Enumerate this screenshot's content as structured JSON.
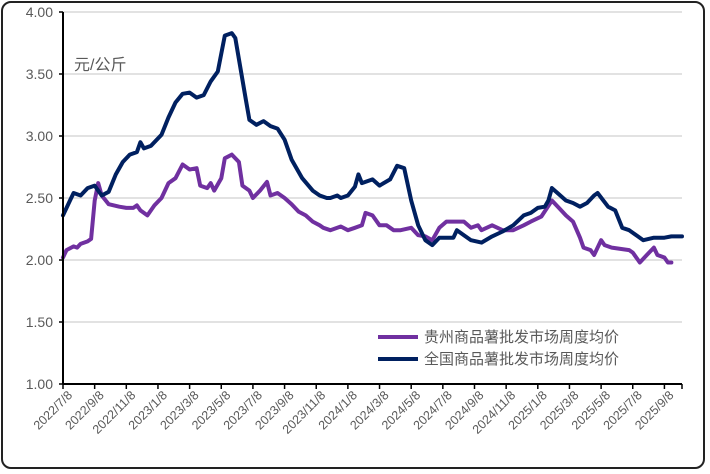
{
  "chart_data": {
    "type": "line",
    "title": "",
    "ylabel": "元/公斤",
    "ylim": [
      1.0,
      4.0
    ],
    "yticks": [
      "1.00",
      "1.50",
      "2.00",
      "2.50",
      "3.00",
      "3.50",
      "4.00"
    ],
    "x_unit": "week index from 2022/7/8",
    "xlim": [
      0,
      176
    ],
    "xtick_labels": [
      "2022/7/8",
      "2022/9/8",
      "2022/11/8",
      "2023/1/8",
      "2023/3/8",
      "2023/5/8",
      "2023/7/8",
      "2023/9/8",
      "2023/11/8",
      "2024/1/8",
      "2024/3/8",
      "2024/5/8",
      "2024/7/8",
      "2024/9/8",
      "2024/11/8",
      "2025/1/8",
      "2025/3/8",
      "2025/5/8",
      "2025/7/8",
      "2025/9/8"
    ],
    "grid": true,
    "legend_position": "bottom-right",
    "series": [
      {
        "name": "贵州商品薯批发市场周度均价",
        "color": "#7030a0",
        "points": [
          [
            0,
            2.02
          ],
          [
            1,
            2.08
          ],
          [
            3,
            2.11
          ],
          [
            4,
            2.1
          ],
          [
            5,
            2.13
          ],
          [
            7,
            2.15
          ],
          [
            8,
            2.17
          ],
          [
            9,
            2.48
          ],
          [
            10,
            2.62
          ],
          [
            11,
            2.52
          ],
          [
            13,
            2.45
          ],
          [
            16,
            2.43
          ],
          [
            18,
            2.42
          ],
          [
            20,
            2.42
          ],
          [
            21,
            2.44
          ],
          [
            22,
            2.4
          ],
          [
            24,
            2.36
          ],
          [
            26,
            2.44
          ],
          [
            28,
            2.5
          ],
          [
            30,
            2.62
          ],
          [
            32,
            2.66
          ],
          [
            34,
            2.77
          ],
          [
            36,
            2.73
          ],
          [
            38,
            2.74
          ],
          [
            39,
            2.6
          ],
          [
            41,
            2.58
          ],
          [
            42,
            2.62
          ],
          [
            43,
            2.56
          ],
          [
            45,
            2.66
          ],
          [
            46,
            2.82
          ],
          [
            48,
            2.85
          ],
          [
            50,
            2.79
          ],
          [
            51,
            2.6
          ],
          [
            53,
            2.56
          ],
          [
            54,
            2.5
          ],
          [
            56,
            2.56
          ],
          [
            58,
            2.63
          ],
          [
            59,
            2.52
          ],
          [
            61,
            2.54
          ],
          [
            63,
            2.5
          ],
          [
            65,
            2.45
          ],
          [
            67,
            2.39
          ],
          [
            69,
            2.36
          ],
          [
            71,
            2.31
          ],
          [
            73,
            2.28
          ],
          [
            74,
            2.26
          ],
          [
            76,
            2.24
          ],
          [
            79,
            2.27
          ],
          [
            81,
            2.24
          ],
          [
            83,
            2.26
          ],
          [
            85,
            2.28
          ],
          [
            86,
            2.38
          ],
          [
            88,
            2.36
          ],
          [
            90,
            2.28
          ],
          [
            92,
            2.28
          ],
          [
            94,
            2.24
          ],
          [
            96,
            2.24
          ],
          [
            99,
            2.26
          ],
          [
            101,
            2.2
          ],
          [
            103,
            2.19
          ],
          [
            105,
            2.16
          ],
          [
            107,
            2.26
          ],
          [
            109,
            2.31
          ],
          [
            111,
            2.31
          ],
          [
            114,
            2.31
          ],
          [
            116,
            2.26
          ],
          [
            118,
            2.28
          ],
          [
            119,
            2.24
          ],
          [
            122,
            2.28
          ],
          [
            125,
            2.24
          ],
          [
            128,
            2.24
          ],
          [
            131,
            2.28
          ],
          [
            133,
            2.31
          ],
          [
            136,
            2.35
          ],
          [
            139,
            2.48
          ],
          [
            141,
            2.42
          ],
          [
            143,
            2.36
          ],
          [
            145,
            2.31
          ],
          [
            147,
            2.18
          ],
          [
            148,
            2.1
          ],
          [
            150,
            2.08
          ],
          [
            151,
            2.04
          ],
          [
            153,
            2.16
          ],
          [
            154,
            2.12
          ],
          [
            156,
            2.1
          ],
          [
            161,
            2.08
          ],
          [
            162,
            2.06
          ],
          [
            164,
            1.98
          ],
          [
            166,
            2.04
          ],
          [
            168,
            2.1
          ],
          [
            169,
            2.04
          ],
          [
            171,
            2.02
          ],
          [
            172,
            1.98
          ],
          [
            173,
            1.98
          ]
        ]
      },
      {
        "name": "全国商品薯批发市场周度均价",
        "color": "#002060",
        "points": [
          [
            0,
            2.36
          ],
          [
            2,
            2.48
          ],
          [
            3,
            2.54
          ],
          [
            5,
            2.52
          ],
          [
            7,
            2.58
          ],
          [
            9,
            2.6
          ],
          [
            10,
            2.56
          ],
          [
            11,
            2.52
          ],
          [
            13,
            2.55
          ],
          [
            15,
            2.69
          ],
          [
            17,
            2.79
          ],
          [
            19,
            2.85
          ],
          [
            21,
            2.87
          ],
          [
            22,
            2.95
          ],
          [
            23,
            2.9
          ],
          [
            25,
            2.92
          ],
          [
            28,
            3.01
          ],
          [
            30,
            3.15
          ],
          [
            32,
            3.27
          ],
          [
            34,
            3.34
          ],
          [
            36,
            3.35
          ],
          [
            38,
            3.31
          ],
          [
            40,
            3.33
          ],
          [
            42,
            3.44
          ],
          [
            44,
            3.52
          ],
          [
            46,
            3.81
          ],
          [
            48,
            3.83
          ],
          [
            49,
            3.79
          ],
          [
            52,
            3.29
          ],
          [
            53,
            3.13
          ],
          [
            55,
            3.09
          ],
          [
            57,
            3.12
          ],
          [
            59,
            3.08
          ],
          [
            61,
            3.06
          ],
          [
            63,
            2.97
          ],
          [
            65,
            2.81
          ],
          [
            68,
            2.66
          ],
          [
            71,
            2.56
          ],
          [
            73,
            2.52
          ],
          [
            75,
            2.5
          ],
          [
            76,
            2.5
          ],
          [
            78,
            2.52
          ],
          [
            79,
            2.5
          ],
          [
            81,
            2.52
          ],
          [
            83,
            2.59
          ],
          [
            84,
            2.69
          ],
          [
            85,
            2.62
          ],
          [
            88,
            2.65
          ],
          [
            90,
            2.6
          ],
          [
            93,
            2.65
          ],
          [
            95,
            2.76
          ],
          [
            97,
            2.74
          ],
          [
            99,
            2.48
          ],
          [
            101,
            2.28
          ],
          [
            103,
            2.16
          ],
          [
            105,
            2.12
          ],
          [
            107,
            2.18
          ],
          [
            111,
            2.18
          ],
          [
            112,
            2.24
          ],
          [
            114,
            2.2
          ],
          [
            116,
            2.16
          ],
          [
            119,
            2.14
          ],
          [
            122,
            2.19
          ],
          [
            125,
            2.23
          ],
          [
            128,
            2.28
          ],
          [
            131,
            2.36
          ],
          [
            133,
            2.38
          ],
          [
            135,
            2.42
          ],
          [
            137,
            2.43
          ],
          [
            138,
            2.48
          ],
          [
            139,
            2.58
          ],
          [
            141,
            2.53
          ],
          [
            143,
            2.48
          ],
          [
            145,
            2.46
          ],
          [
            147,
            2.43
          ],
          [
            149,
            2.46
          ],
          [
            151,
            2.52
          ],
          [
            152,
            2.54
          ],
          [
            155,
            2.43
          ],
          [
            157,
            2.4
          ],
          [
            159,
            2.26
          ],
          [
            161,
            2.24
          ],
          [
            165,
            2.16
          ],
          [
            168,
            2.18
          ],
          [
            171,
            2.18
          ],
          [
            173,
            2.19
          ],
          [
            176,
            2.19
          ]
        ]
      }
    ]
  }
}
